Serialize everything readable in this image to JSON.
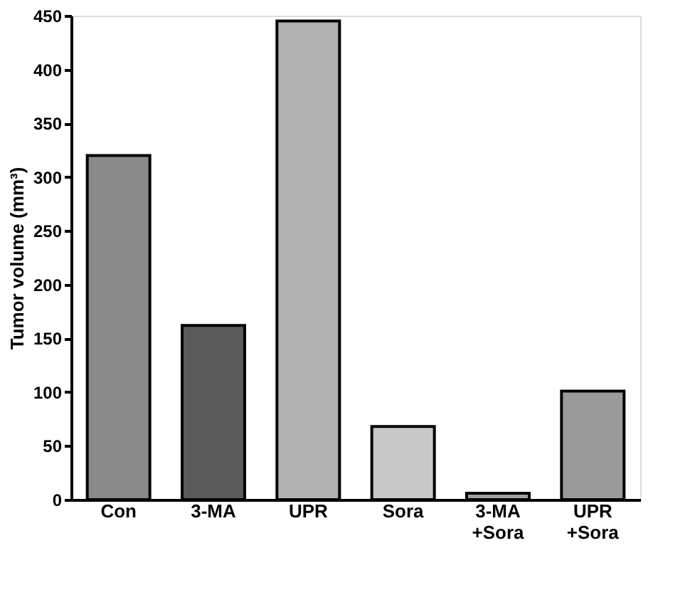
{
  "chart_data": {
    "type": "bar",
    "ylabel": "Tumor volume (mm³)",
    "categories": [
      "Con",
      "3-MA",
      "UPR",
      "Sora",
      "3-MA +Sora",
      "UPR +Sora"
    ],
    "values": [
      320,
      162,
      445,
      68,
      6,
      101
    ],
    "colors": [
      "#8a8a8a",
      "#5a5a5a",
      "#b0b0b0",
      "#c8c8c8",
      "#a0a0a0",
      "#9a9a9a"
    ],
    "ylim": [
      0,
      450
    ],
    "yticks": [
      0,
      50,
      100,
      150,
      200,
      250,
      300,
      350,
      400,
      450
    ],
    "grid": false
  }
}
